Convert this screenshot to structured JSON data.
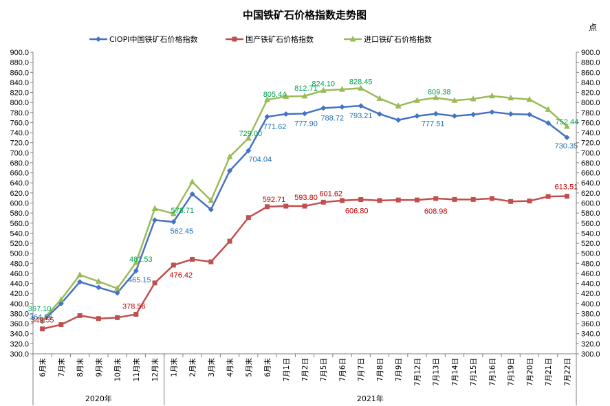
{
  "chart_data": {
    "type": "line",
    "title": "中国铁矿石价格指数走势图",
    "unit_label": "点",
    "ylim": [
      300,
      900
    ],
    "ytick_step": 20,
    "grid": false,
    "legend_position": "top",
    "categories": [
      "6月末",
      "7月末",
      "8月末",
      "9月末",
      "10月末",
      "11月末",
      "12月末",
      "1月末",
      "2月末",
      "3月末",
      "4月末",
      "5月末",
      "6月末",
      "7月1日",
      "7月2日",
      "7月5日",
      "7月6日",
      "7月7日",
      "7月8日",
      "7月9日",
      "7月12日",
      "7月13日",
      "7月14日",
      "7月15日",
      "7月16日",
      "7月19日",
      "7月20日",
      "7月21日",
      "7月22日"
    ],
    "year_groups": [
      {
        "label": "2020年",
        "start": 0,
        "end": 6
      },
      {
        "label": "2021年",
        "start": 7,
        "end": 28
      }
    ],
    "series": [
      {
        "name": "CIOPI中国铁矿石价格指数",
        "color": "#4472C4",
        "marker": "diamond",
        "values": [
          364.56,
          400,
          443,
          432,
          421,
          465.15,
          566,
          562.45,
          618,
          587,
          664,
          704.04,
          771.62,
          777,
          777.9,
          788.72,
          791,
          793.21,
          777,
          765,
          773,
          777.51,
          773,
          776,
          781,
          777,
          776,
          759,
          730.35
        ],
        "labels": {
          "0": "364.56",
          "5": "465.15",
          "7": "562.45",
          "11": "704.04",
          "12": "771.62",
          "14": "777.90",
          "15": "788.72",
          "17": "793.21",
          "21": "777.51",
          "28": "730.35"
        },
        "label_color": "#1F6FB2"
      },
      {
        "name": "国产铁矿石价格指数",
        "color": "#C0504D",
        "marker": "square",
        "values": [
          349.55,
          358,
          376,
          370,
          372,
          378.56,
          441,
          476.42,
          488,
          483,
          524,
          571,
          592.71,
          593.8,
          593.8,
          601.62,
          605,
          606.8,
          605,
          606,
          606,
          608.98,
          607,
          607,
          609,
          603,
          604,
          613,
          613.51
        ],
        "labels": {
          "0": "349.55",
          "5": "378.56",
          "7": "476.42",
          "12": "592.71",
          "14": "593.80",
          "15": "601.62",
          "17": "606.80",
          "21": "608.98",
          "28": "613.51"
        },
        "label_color": "#C00000"
      },
      {
        "name": "进口铁矿石价格指数",
        "color": "#9BBB59",
        "marker": "triangle",
        "values": [
          367.1,
          408,
          457,
          444,
          430,
          481.53,
          589,
          578.71,
          642,
          605,
          692,
          729.0,
          805.44,
          812,
          812.71,
          824.1,
          826,
          828.45,
          808,
          793,
          804,
          809.38,
          804,
          807,
          813,
          809,
          806,
          786,
          752.44
        ],
        "labels": {
          "0": "367.10",
          "5": "481.53",
          "7": "578.71",
          "11": "729.00",
          "12": "805.44",
          "14": "812.71",
          "15": "824.10",
          "17": "828.45",
          "21": "809.38",
          "28": "752.44"
        },
        "label_color": "#00A050"
      }
    ]
  }
}
